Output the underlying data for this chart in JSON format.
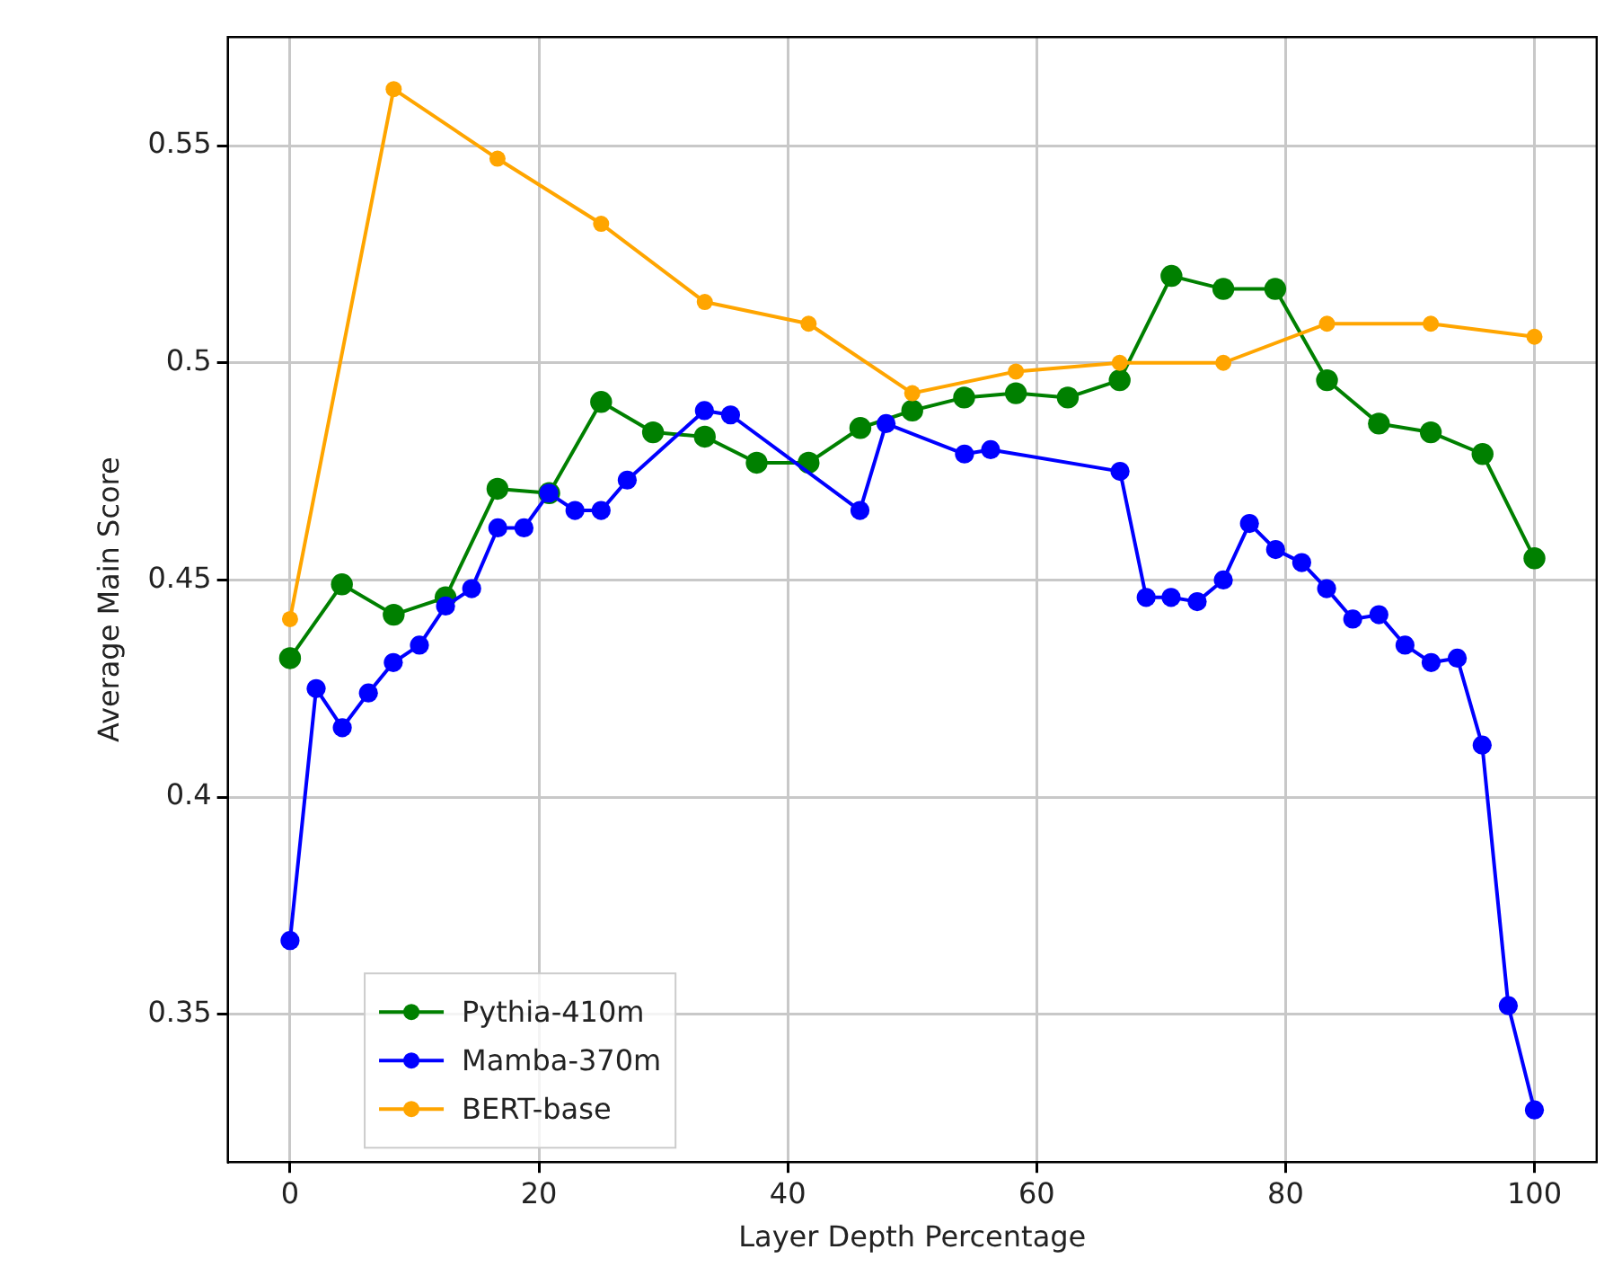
{
  "chart_data": {
    "type": "line",
    "xlabel": "Layer Depth Percentage",
    "ylabel": "Average Main Score",
    "xlim": [
      -5,
      105
    ],
    "xticks": [
      0,
      20,
      40,
      60,
      80,
      100
    ],
    "ylim": [
      0.316,
      0.575
    ],
    "yticks": [
      0.35,
      0.4,
      0.45,
      0.5,
      0.55
    ],
    "grid": true,
    "legend": "bottom left",
    "marker": "circle",
    "series": [
      {
        "name": "Pythia-410m",
        "color": "#008000",
        "x": [
          0,
          4.17,
          8.33,
          12.5,
          16.67,
          20.83,
          25,
          29.17,
          33.33,
          37.5,
          41.67,
          45.83,
          50,
          54.17,
          58.33,
          62.5,
          66.67,
          70.83,
          75,
          79.17,
          83.33,
          87.5,
          91.67,
          95.83,
          100
        ],
        "values": [
          0.432,
          0.449,
          0.442,
          0.446,
          0.471,
          0.47,
          0.491,
          0.484,
          0.483,
          0.477,
          0.477,
          0.485,
          0.489,
          0.492,
          0.493,
          0.492,
          0.496,
          0.52,
          0.517,
          0.517,
          0.496,
          0.486,
          0.484,
          0.479,
          0.455
        ]
      },
      {
        "name": "Mamba-370m",
        "color": "#0000ff",
        "x": [
          0,
          2.1,
          4.2,
          6.3,
          8.3,
          10.4,
          12.5,
          14.6,
          16.7,
          18.8,
          20.8,
          22.9,
          25,
          27.1,
          33.3,
          35.4,
          45.8,
          47.9,
          54.2,
          56.3,
          66.7,
          68.8,
          70.8,
          72.9,
          75,
          77.1,
          79.2,
          81.3,
          83.3,
          85.4,
          87.5,
          89.6,
          91.7,
          93.8,
          95.8,
          97.9,
          100
        ],
        "values": [
          0.367,
          0.425,
          0.416,
          0.424,
          0.431,
          0.435,
          0.444,
          0.448,
          0.462,
          0.462,
          0.47,
          0.466,
          0.466,
          0.473,
          0.489,
          0.488,
          0.466,
          0.486,
          0.479,
          0.48,
          0.475,
          0.446,
          0.446,
          0.445,
          0.45,
          0.463,
          0.457,
          0.454,
          0.448,
          0.441,
          0.442,
          0.435,
          0.431,
          0.432,
          0.412,
          0.352,
          0.328
        ]
      },
      {
        "name": "BERT-base",
        "color": "#ffa500",
        "x": [
          0,
          8.33,
          16.67,
          25,
          33.33,
          41.67,
          50,
          58.33,
          66.67,
          75,
          83.33,
          91.67,
          100
        ],
        "values": [
          0.441,
          0.563,
          0.547,
          0.532,
          0.514,
          0.509,
          0.493,
          0.498,
          0.5,
          0.5,
          0.509,
          0.509,
          0.506
        ]
      }
    ]
  }
}
